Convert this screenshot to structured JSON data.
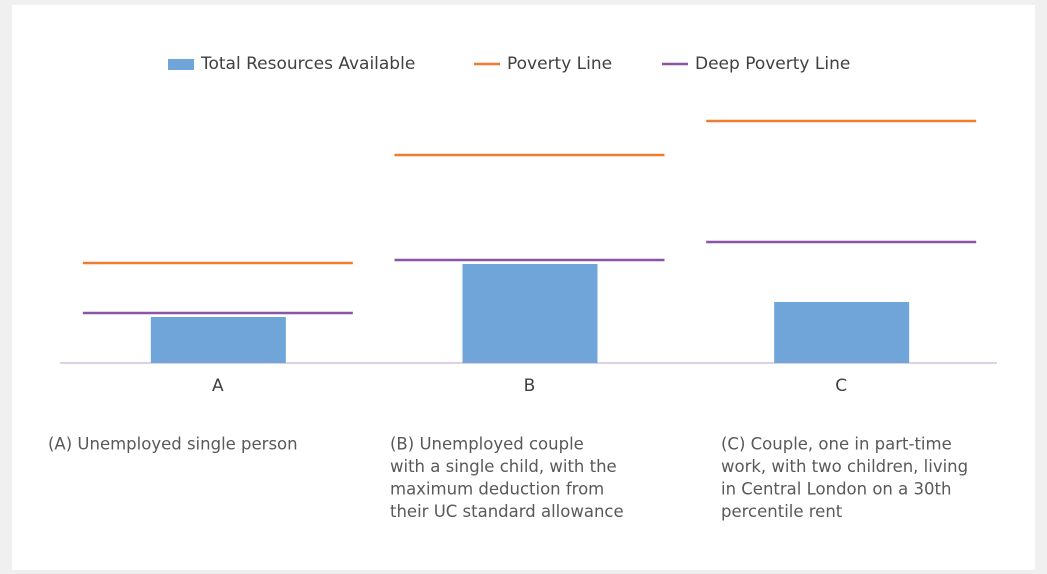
{
  "chart_data": {
    "type": "bar",
    "categories": [
      "A",
      "B",
      "C"
    ],
    "series": [
      {
        "name": "Total Resources Available",
        "color": "#70a5da",
        "type": "bar",
        "values": [
          46,
          99,
          61
        ]
      },
      {
        "name": "Poverty Line",
        "color": "#ed7d31",
        "type": "line",
        "values": [
          100,
          208,
          242
        ]
      },
      {
        "name": "Deep Poverty Line",
        "color": "#8a55a6",
        "type": "line",
        "values": [
          50,
          103,
          121
        ]
      }
    ],
    "ylim": [
      0,
      260
    ],
    "annotations": [
      [
        "(A) Unemployed single person"
      ],
      [
        "(B) Unemployed couple",
        "with a single child, with the",
        "maximum deduction from",
        "their UC standard allowance"
      ],
      [
        "(C) Couple, one in part-time",
        "work, with two children, living",
        "in Central London on a 30th",
        "percentile rent"
      ]
    ]
  }
}
